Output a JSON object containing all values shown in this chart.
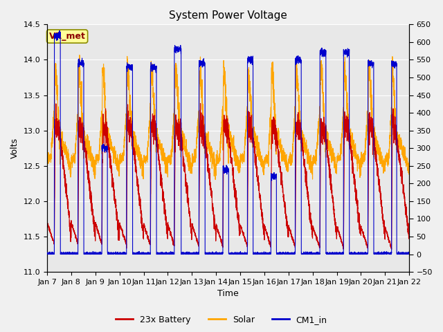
{
  "title": "System Power Voltage",
  "xlabel": "Time",
  "ylabel": "Volts",
  "ylim_left": [
    11.0,
    14.5
  ],
  "ylim_right": [
    -50,
    650
  ],
  "yticks_left": [
    11.0,
    11.5,
    12.0,
    12.5,
    13.0,
    13.5,
    14.0,
    14.5
  ],
  "yticks_right": [
    -50,
    0,
    50,
    100,
    150,
    200,
    250,
    300,
    350,
    400,
    450,
    500,
    550,
    600,
    650
  ],
  "xtick_labels": [
    "Jan 7",
    "Jan 8",
    "Jan 9",
    "Jan 10",
    "Jan 11",
    "Jan 12",
    "Jan 13",
    "Jan 14",
    "Jan 15",
    "Jan 16",
    "Jan 17",
    "Jan 18",
    "Jan 19",
    "Jan 20",
    "Jan 21",
    "Jan 22"
  ],
  "annotation_text": "VR_met",
  "annotation_color": "#8B0000",
  "annotation_bg": "#FFFF99",
  "annotation_edge": "#8B8B00",
  "line_battery_color": "#CC0000",
  "line_solar_color": "#FFA500",
  "line_cm1_color": "#0000CC",
  "legend_labels": [
    "23x Battery",
    "Solar",
    "CM1_in"
  ],
  "fig_facecolor": "#F0F0F0",
  "plot_facecolor": "#E8E8E8",
  "grid_color": "#FFFFFF",
  "title_fontsize": 11,
  "label_fontsize": 9,
  "tick_fontsize": 8,
  "figsize": [
    6.4,
    4.8
  ],
  "dpi": 100
}
